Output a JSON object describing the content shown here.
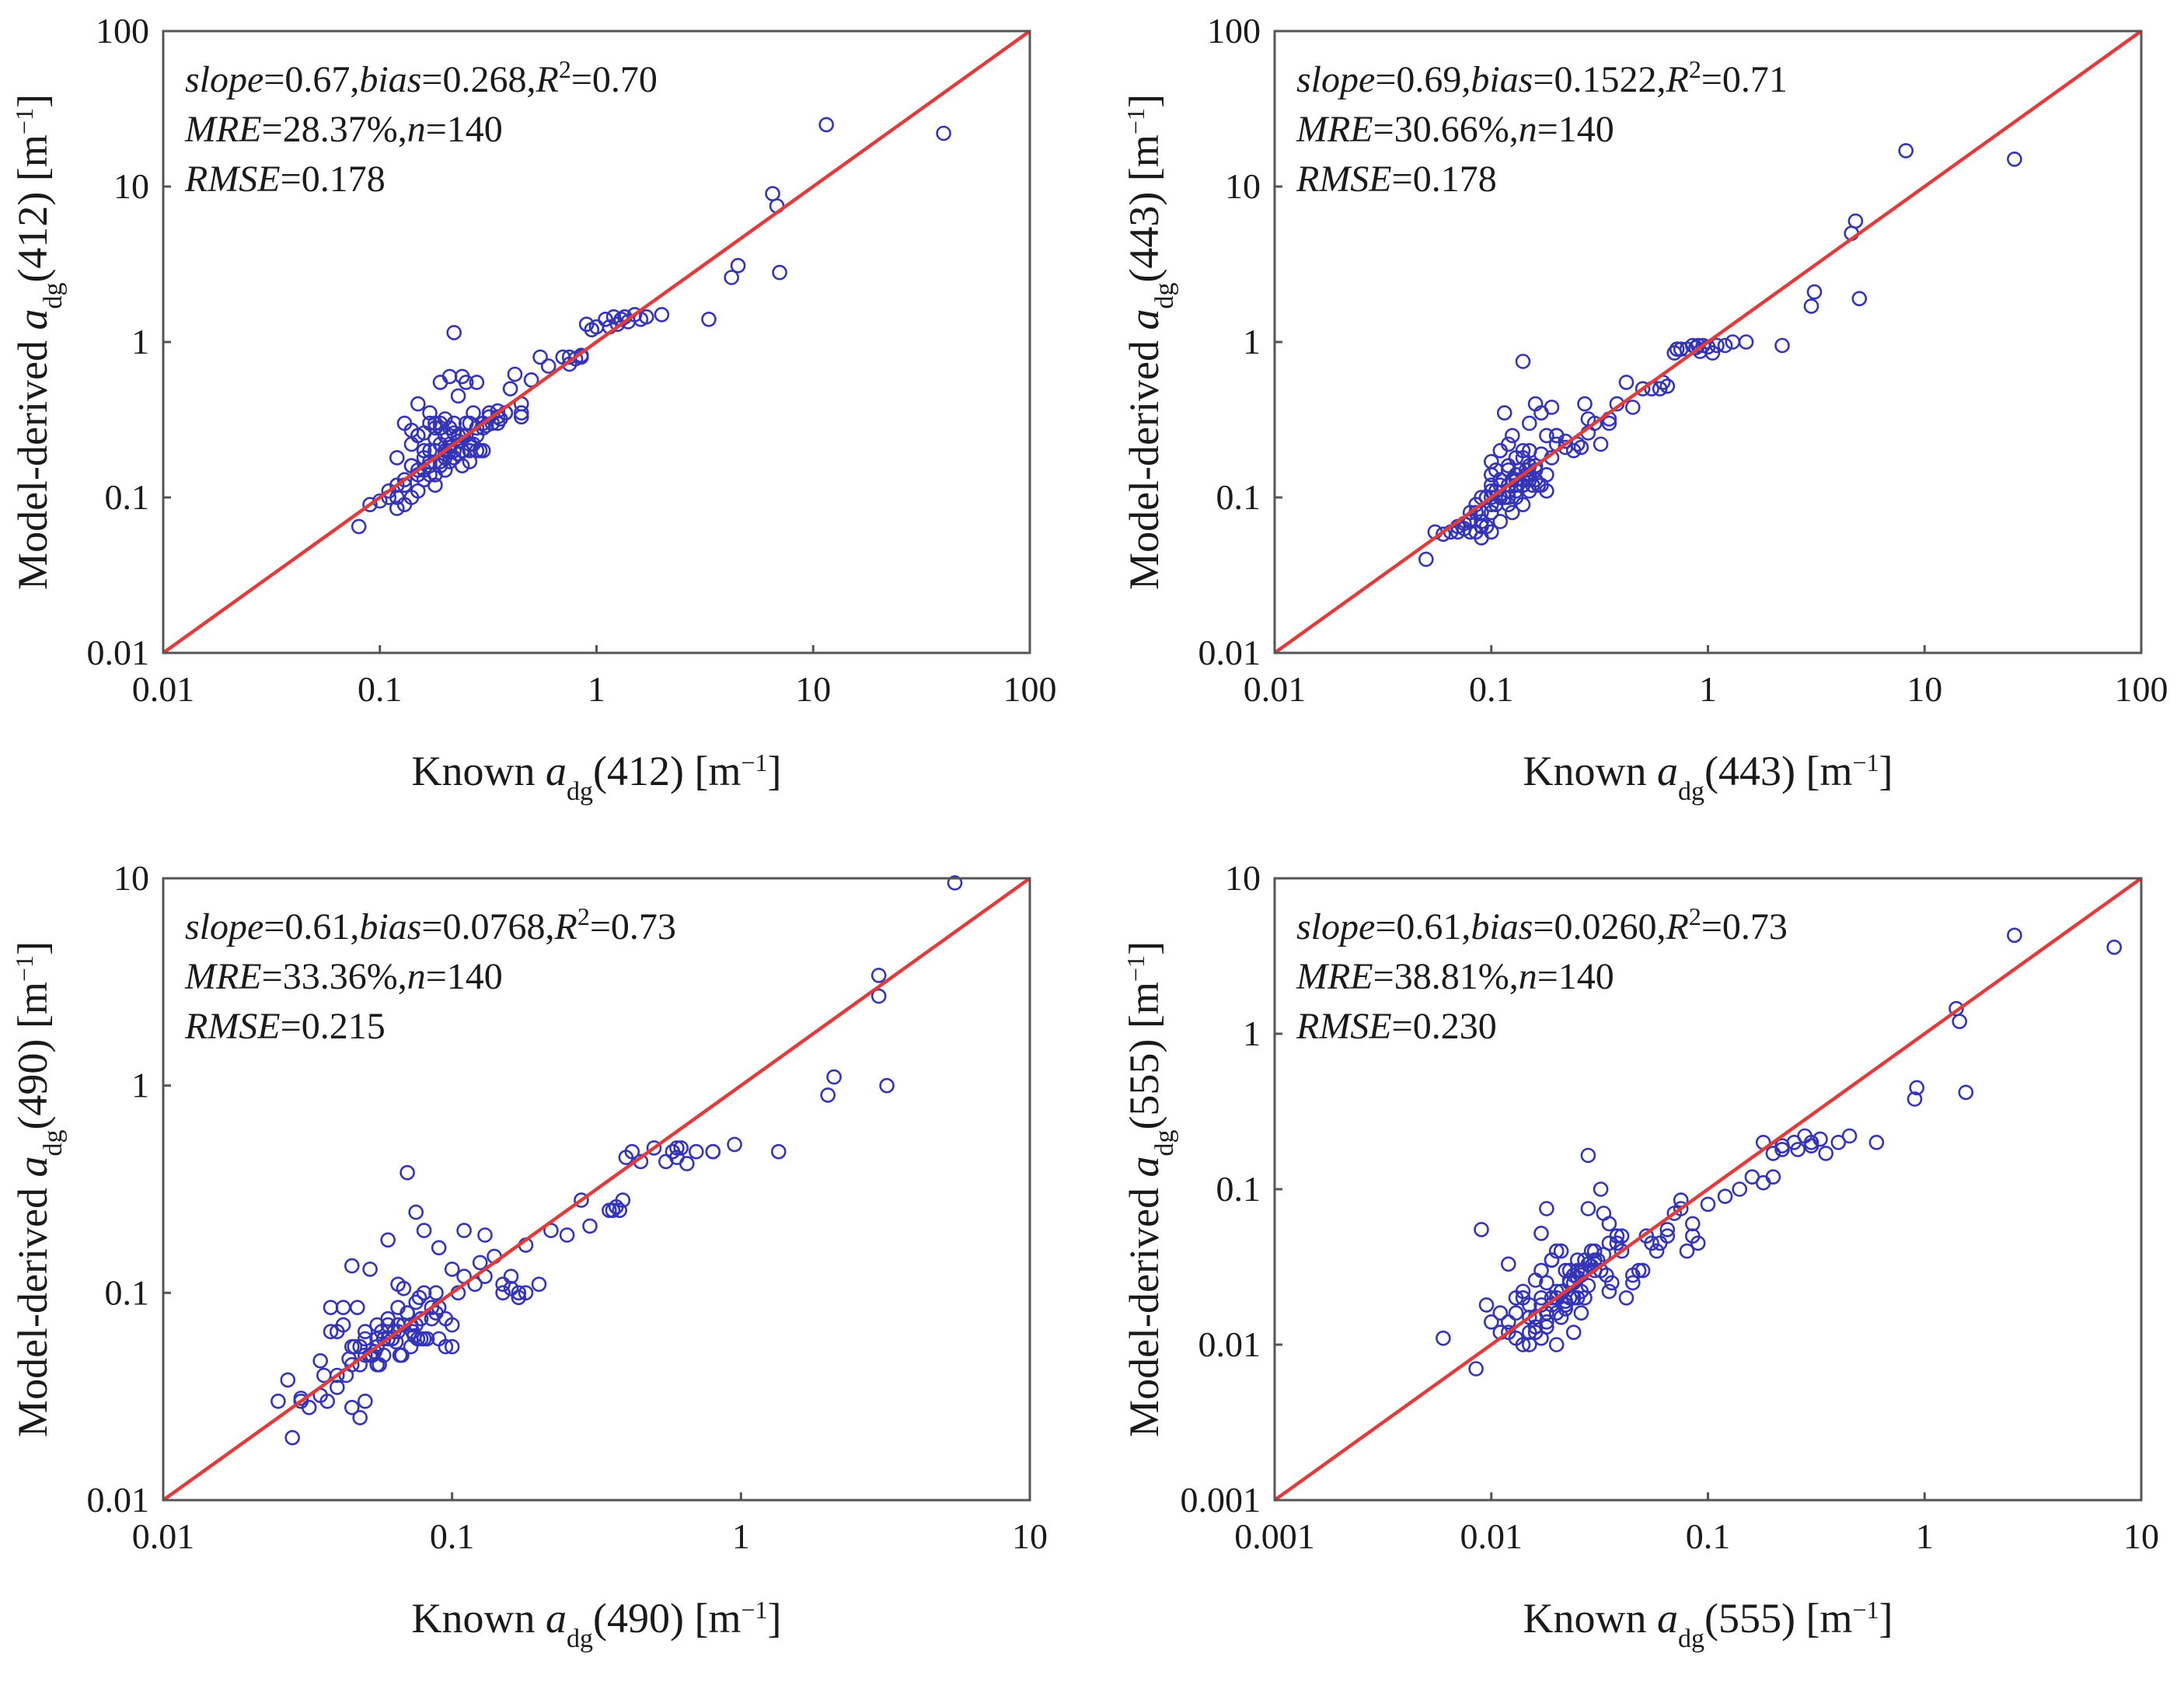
{
  "colors": {
    "points": "#3434b8",
    "identity_line": "#e23b3b",
    "frame": "#555555"
  },
  "chart_data": [
    {
      "type": "scatter",
      "panel": "412",
      "scale": "log",
      "xlim": [
        0.01,
        100
      ],
      "ylim": [
        0.01,
        100
      ],
      "xticks": [
        "0.01",
        "0.1",
        "1",
        "10",
        "100"
      ],
      "yticks": [
        "0.01",
        "0.1",
        "1",
        "10",
        "100"
      ],
      "xlabel": {
        "prefix": "Known ",
        "var": "a",
        "sub": "dg",
        "band": "(412) [m",
        "sup": "−1",
        "suffix": "]"
      },
      "ylabel": {
        "prefix": "Model-derived ",
        "var": "a",
        "sub": "dg",
        "band": "(412) [m",
        "sup": "−1",
        "suffix": "]"
      },
      "stats": {
        "slope": "0.67",
        "bias": "0.268",
        "r2": "0.70",
        "mre": "28.37%",
        "n": "140",
        "rmse": "0.178"
      },
      "x": [
        0.08,
        0.09,
        0.1,
        0.11,
        0.12,
        0.12,
        0.13,
        0.13,
        0.14,
        0.14,
        0.14,
        0.15,
        0.15,
        0.15,
        0.16,
        0.16,
        0.16,
        0.17,
        0.17,
        0.17,
        0.18,
        0.18,
        0.18,
        0.19,
        0.19,
        0.19,
        0.2,
        0.2,
        0.2,
        0.21,
        0.21,
        0.21,
        0.22,
        0.22,
        0.22,
        0.23,
        0.23,
        0.23,
        0.24,
        0.24,
        0.25,
        0.25,
        0.26,
        0.26,
        0.27,
        0.28,
        0.28,
        0.3,
        0.3,
        0.32,
        0.32,
        0.35,
        0.35,
        0.38,
        0.4,
        0.42,
        0.45,
        0.45,
        0.5,
        0.55,
        0.6,
        0.7,
        0.75,
        0.8,
        0.85,
        0.9,
        0.95,
        1.0,
        1.1,
        1.2,
        1.3,
        1.4,
        1.5,
        1.7,
        2.0,
        3.3,
        4.2,
        4.5,
        6.5,
        6.8,
        7.0,
        11.5,
        40,
        0.13,
        0.15,
        0.17,
        0.19,
        0.21,
        0.24,
        0.27,
        0.3,
        0.12,
        0.14,
        0.16,
        0.18,
        0.2,
        0.22,
        0.25,
        0.28,
        0.35,
        0.18,
        0.22,
        0.26,
        0.16,
        0.2,
        0.24,
        0.33,
        0.45,
        0.13,
        0.17,
        0.21,
        0.23,
        0.15,
        0.19,
        0.29,
        0.36,
        0.14,
        0.18,
        1.25,
        1.35,
        1.15,
        0.85,
        0.75,
        1.6,
        0.12,
        0.11,
        0.16,
        0.2,
        0.26,
        0.31,
        0.38,
        0.21,
        0.19,
        0.23,
        0.17,
        0.28,
        0.24,
        0.15
      ],
      "y": [
        0.065,
        0.09,
        0.095,
        0.1,
        0.1,
        0.12,
        0.13,
        0.09,
        0.27,
        0.16,
        0.1,
        0.25,
        0.15,
        0.11,
        0.2,
        0.13,
        0.26,
        0.35,
        0.17,
        0.14,
        0.3,
        0.2,
        0.12,
        0.55,
        0.22,
        0.16,
        0.32,
        0.18,
        0.25,
        0.6,
        0.22,
        0.17,
        1.15,
        0.3,
        0.2,
        0.45,
        0.25,
        0.19,
        0.6,
        0.2,
        0.55,
        0.3,
        0.3,
        0.17,
        0.35,
        0.55,
        0.25,
        0.3,
        0.28,
        0.33,
        0.35,
        0.33,
        0.3,
        0.35,
        0.5,
        0.62,
        0.4,
        0.33,
        0.57,
        0.8,
        0.7,
        0.8,
        0.8,
        0.78,
        0.8,
        1.3,
        1.2,
        1.25,
        1.4,
        1.45,
        1.4,
        1.35,
        1.5,
        1.45,
        1.5,
        1.4,
        2.6,
        3.1,
        9.0,
        7.5,
        2.8,
        25.0,
        22.0,
        0.3,
        0.4,
        0.3,
        0.28,
        0.28,
        0.25,
        0.22,
        0.2,
        0.18,
        0.16,
        0.15,
        0.14,
        0.2,
        0.18,
        0.25,
        0.2,
        0.36,
        0.24,
        0.26,
        0.22,
        0.18,
        0.15,
        0.16,
        0.3,
        0.35,
        0.12,
        0.16,
        0.2,
        0.23,
        0.25,
        0.3,
        0.2,
        0.32,
        0.22,
        0.28,
        1.3,
        1.45,
        1.25,
        0.82,
        0.72,
        1.4,
        0.085,
        0.11,
        0.15,
        0.19,
        0.2,
        0.29,
        0.35,
        0.21,
        0.17,
        0.23,
        0.2,
        0.28,
        0.2,
        0.14
      ]
    },
    {
      "type": "scatter",
      "panel": "443",
      "scale": "log",
      "xlim": [
        0.01,
        100
      ],
      "ylim": [
        0.01,
        100
      ],
      "xticks": [
        "0.01",
        "0.1",
        "1",
        "10",
        "100"
      ],
      "yticks": [
        "0.01",
        "0.1",
        "1",
        "10",
        "100"
      ],
      "xlabel": {
        "prefix": "Known ",
        "var": "a",
        "sub": "dg",
        "band": "(443) [m",
        "sup": "−1",
        "suffix": "]"
      },
      "ylabel": {
        "prefix": "Model-derived ",
        "var": "a",
        "sub": "dg",
        "band": "(443) [m",
        "sup": "−1",
        "suffix": "]"
      },
      "stats": {
        "slope": "0.69",
        "bias": "0.1522",
        "r2": "0.71",
        "mre": "30.66%",
        "n": "140",
        "rmse": "0.178"
      },
      "x": [
        0.05,
        0.055,
        0.06,
        0.065,
        0.07,
        0.07,
        0.075,
        0.08,
        0.08,
        0.085,
        0.085,
        0.09,
        0.09,
        0.09,
        0.095,
        0.095,
        0.1,
        0.1,
        0.1,
        0.1,
        0.105,
        0.105,
        0.11,
        0.11,
        0.11,
        0.115,
        0.115,
        0.12,
        0.12,
        0.12,
        0.125,
        0.125,
        0.13,
        0.13,
        0.13,
        0.135,
        0.14,
        0.14,
        0.14,
        0.145,
        0.15,
        0.15,
        0.15,
        0.155,
        0.16,
        0.16,
        0.17,
        0.17,
        0.18,
        0.18,
        0.19,
        0.2,
        0.2,
        0.22,
        0.24,
        0.25,
        0.27,
        0.28,
        0.3,
        0.32,
        0.35,
        0.38,
        0.42,
        0.5,
        0.55,
        0.6,
        0.62,
        0.65,
        0.75,
        0.8,
        0.85,
        0.9,
        0.95,
        1.0,
        1.1,
        1.2,
        1.3,
        1.5,
        2.2,
        3.0,
        3.1,
        4.8,
        4.6,
        5.0,
        8.2,
        26,
        0.1,
        0.12,
        0.14,
        0.16,
        0.11,
        0.13,
        0.15,
        0.09,
        0.17,
        0.19,
        0.08,
        0.1,
        0.12,
        0.14,
        0.16,
        0.18,
        0.11,
        0.13,
        0.15,
        0.085,
        0.095,
        0.105,
        0.125,
        0.145,
        0.165,
        0.2,
        0.22,
        0.26,
        0.28,
        0.35,
        0.45,
        0.7,
        0.72,
        0.88,
        0.92,
        1.05,
        0.13,
        0.1,
        0.12,
        0.14,
        0.16,
        0.11,
        0.15,
        0.09,
        0.08,
        0.075,
        0.13,
        0.12,
        0.1,
        0.14
      ],
      "y": [
        0.04,
        0.06,
        0.058,
        0.06,
        0.06,
        0.065,
        0.063,
        0.07,
        0.06,
        0.08,
        0.06,
        0.1,
        0.07,
        0.055,
        0.1,
        0.065,
        0.17,
        0.12,
        0.08,
        0.06,
        0.15,
        0.09,
        0.2,
        0.13,
        0.07,
        0.35,
        0.1,
        0.22,
        0.12,
        0.09,
        0.25,
        0.08,
        0.18,
        0.12,
        0.1,
        0.15,
        0.75,
        0.2,
        0.12,
        0.15,
        0.3,
        0.2,
        0.14,
        0.12,
        0.4,
        0.15,
        0.35,
        0.12,
        0.25,
        0.11,
        0.38,
        0.25,
        0.22,
        0.23,
        0.2,
        0.22,
        0.4,
        0.32,
        0.3,
        0.22,
        0.3,
        0.4,
        0.55,
        0.5,
        0.5,
        0.5,
        0.55,
        0.52,
        0.9,
        0.9,
        0.95,
        0.95,
        0.95,
        0.93,
        0.95,
        0.95,
        1.0,
        1.0,
        0.95,
        1.7,
        2.1,
        6.0,
        5.0,
        1.9,
        17.0,
        15.0,
        0.14,
        0.16,
        0.18,
        0.16,
        0.12,
        0.14,
        0.16,
        0.08,
        0.19,
        0.18,
        0.08,
        0.09,
        0.11,
        0.13,
        0.15,
        0.14,
        0.1,
        0.12,
        0.13,
        0.09,
        0.1,
        0.11,
        0.13,
        0.14,
        0.12,
        0.25,
        0.21,
        0.21,
        0.26,
        0.32,
        0.38,
        0.85,
        0.9,
        0.92,
        0.87,
        0.85,
        0.11,
        0.1,
        0.1,
        0.12,
        0.13,
        0.1,
        0.11,
        0.065,
        0.072,
        0.068,
        0.13,
        0.15,
        0.11,
        0.09
      ]
    },
    {
      "type": "scatter",
      "panel": "490",
      "scale": "log",
      "xlim": [
        0.01,
        10
      ],
      "ylim": [
        0.01,
        10
      ],
      "xticks": [
        "0.01",
        "0.1",
        "1",
        "10"
      ],
      "yticks": [
        "0.01",
        "0.1",
        "1",
        "10"
      ],
      "xlabel": {
        "prefix": "Known ",
        "var": "a",
        "sub": "dg",
        "band": "(490) [m",
        "sup": "−1",
        "suffix": "]"
      },
      "ylabel": {
        "prefix": "Model-derived ",
        "var": "a",
        "sub": "dg",
        "band": "(490) [m",
        "sup": "−1",
        "suffix": "]"
      },
      "stats": {
        "slope": "0.61",
        "bias": "0.0768",
        "r2": "0.73",
        "mre": "33.36%",
        "n": "140",
        "rmse": "0.215"
      },
      "x": [
        0.025,
        0.027,
        0.028,
        0.03,
        0.03,
        0.032,
        0.035,
        0.035,
        0.037,
        0.038,
        0.04,
        0.04,
        0.042,
        0.043,
        0.045,
        0.045,
        0.047,
        0.048,
        0.05,
        0.05,
        0.05,
        0.052,
        0.053,
        0.055,
        0.055,
        0.057,
        0.058,
        0.06,
        0.06,
        0.06,
        0.062,
        0.063,
        0.065,
        0.065,
        0.067,
        0.068,
        0.07,
        0.07,
        0.072,
        0.073,
        0.075,
        0.075,
        0.077,
        0.078,
        0.08,
        0.08,
        0.082,
        0.085,
        0.088,
        0.09,
        0.09,
        0.095,
        0.1,
        0.1,
        0.105,
        0.11,
        0.12,
        0.125,
        0.13,
        0.14,
        0.15,
        0.16,
        0.17,
        0.18,
        0.2,
        0.22,
        0.25,
        0.28,
        0.3,
        0.35,
        0.38,
        0.4,
        0.42,
        0.45,
        0.5,
        0.55,
        0.58,
        0.6,
        0.65,
        0.7,
        0.8,
        0.95,
        1.35,
        2.0,
        2.1,
        3.0,
        3.0,
        3.2,
        5.5,
        0.05,
        0.055,
        0.06,
        0.065,
        0.07,
        0.075,
        0.08,
        0.045,
        0.085,
        0.09,
        0.04,
        0.048,
        0.058,
        0.068,
        0.078,
        0.088,
        0.052,
        0.062,
        0.072,
        0.038,
        0.042,
        0.046,
        0.056,
        0.066,
        0.076,
        0.036,
        0.044,
        0.054,
        0.064,
        0.074,
        0.16,
        0.17,
        0.18,
        0.36,
        0.37,
        0.39,
        0.6,
        0.62,
        0.8,
        0.1,
        0.095,
        0.11,
        0.13,
        0.15,
        0.055,
        0.065,
        0.058,
        0.048,
        0.045
      ],
      "y": [
        0.03,
        0.038,
        0.02,
        0.03,
        0.031,
        0.028,
        0.047,
        0.032,
        0.03,
        0.085,
        0.035,
        0.04,
        0.085,
        0.04,
        0.135,
        0.045,
        0.085,
        0.045,
        0.05,
        0.06,
        0.03,
        0.13,
        0.05,
        0.07,
        0.055,
        0.065,
        0.06,
        0.18,
        0.07,
        0.06,
        0.06,
        0.065,
        0.11,
        0.07,
        0.05,
        0.105,
        0.38,
        0.08,
        0.07,
        0.065,
        0.245,
        0.09,
        0.095,
        0.06,
        0.2,
        0.1,
        0.06,
        0.085,
        0.1,
        0.165,
        0.06,
        0.075,
        0.055,
        0.13,
        0.1,
        0.12,
        0.11,
        0.14,
        0.19,
        0.15,
        0.1,
        0.12,
        0.1,
        0.17,
        0.11,
        0.2,
        0.19,
        0.28,
        0.21,
        0.25,
        0.25,
        0.45,
        0.48,
        0.43,
        0.5,
        0.43,
        0.48,
        0.5,
        0.42,
        0.48,
        0.48,
        0.52,
        0.48,
        0.9,
        1.1,
        3.4,
        2.7,
        1.0,
        9.5,
        0.065,
        0.06,
        0.075,
        0.065,
        0.08,
        0.07,
        0.06,
        0.055,
        0.075,
        0.085,
        0.065,
        0.055,
        0.06,
        0.07,
        0.075,
        0.08,
        0.05,
        0.06,
        0.055,
        0.065,
        0.07,
        0.055,
        0.045,
        0.05,
        0.06,
        0.04,
        0.048,
        0.052,
        0.058,
        0.062,
        0.105,
        0.095,
        0.1,
        0.25,
        0.26,
        0.28,
        0.45,
        0.5,
        0.48,
        0.07,
        0.055,
        0.2,
        0.12,
        0.11,
        0.045,
        0.085,
        0.05,
        0.025,
        0.028
      ],
      "note": ""
    },
    {
      "type": "scatter",
      "panel": "555",
      "scale": "log",
      "xlim": [
        0.001,
        10
      ],
      "ylim": [
        0.001,
        10
      ],
      "xticks": [
        "0.001",
        "0.01",
        "0.1",
        "1",
        "10"
      ],
      "yticks": [
        "0.001",
        "0.01",
        "0.1",
        "1",
        "10"
      ],
      "xlabel": {
        "prefix": "Known ",
        "var": "a",
        "sub": "dg",
        "band": "(555) [m",
        "sup": "−1",
        "suffix": "]"
      },
      "ylabel": {
        "prefix": "Model-derived ",
        "var": "a",
        "sub": "dg",
        "band": "(555) [m",
        "sup": "−1",
        "suffix": "]"
      },
      "stats": {
        "slope": "0.61",
        "bias": "0.0260",
        "r2": "0.73",
        "mre": "38.81%",
        "n": "140",
        "rmse": "0.230"
      },
      "x": [
        0.006,
        0.0085,
        0.009,
        0.0095,
        0.01,
        0.011,
        0.012,
        0.012,
        0.013,
        0.013,
        0.014,
        0.014,
        0.015,
        0.015,
        0.015,
        0.016,
        0.016,
        0.017,
        0.017,
        0.017,
        0.018,
        0.018,
        0.018,
        0.019,
        0.019,
        0.02,
        0.02,
        0.02,
        0.021,
        0.021,
        0.022,
        0.022,
        0.023,
        0.023,
        0.024,
        0.024,
        0.025,
        0.025,
        0.026,
        0.026,
        0.027,
        0.028,
        0.028,
        0.03,
        0.03,
        0.032,
        0.033,
        0.035,
        0.035,
        0.038,
        0.04,
        0.042,
        0.045,
        0.05,
        0.055,
        0.06,
        0.065,
        0.07,
        0.075,
        0.08,
        0.085,
        0.09,
        0.1,
        0.12,
        0.14,
        0.16,
        0.18,
        0.2,
        0.22,
        0.25,
        0.28,
        0.3,
        0.35,
        0.4,
        0.45,
        0.6,
        0.9,
        0.92,
        1.4,
        1.45,
        1.55,
        2.6,
        7.5,
        0.015,
        0.017,
        0.019,
        0.021,
        0.023,
        0.025,
        0.027,
        0.029,
        0.031,
        0.033,
        0.016,
        0.018,
        0.02,
        0.022,
        0.024,
        0.026,
        0.028,
        0.014,
        0.03,
        0.034,
        0.036,
        0.038,
        0.04,
        0.045,
        0.048,
        0.052,
        0.058,
        0.065,
        0.075,
        0.085,
        0.18,
        0.2,
        0.22,
        0.26,
        0.3,
        0.33,
        0.016,
        0.018,
        0.02,
        0.022,
        0.024,
        0.026,
        0.028,
        0.013,
        0.012,
        0.011,
        0.017,
        0.019,
        0.021,
        0.023,
        0.025,
        0.027,
        0.029,
        0.032,
        0.035
      ],
      "y": [
        0.011,
        0.007,
        0.055,
        0.018,
        0.014,
        0.012,
        0.033,
        0.012,
        0.016,
        0.011,
        0.022,
        0.01,
        0.012,
        0.018,
        0.01,
        0.026,
        0.015,
        0.052,
        0.02,
        0.011,
        0.075,
        0.025,
        0.013,
        0.035,
        0.018,
        0.04,
        0.02,
        0.01,
        0.022,
        0.015,
        0.03,
        0.017,
        0.03,
        0.02,
        0.025,
        0.012,
        0.035,
        0.02,
        0.028,
        0.016,
        0.02,
        0.165,
        0.075,
        0.03,
        0.035,
        0.1,
        0.07,
        0.022,
        0.06,
        0.05,
        0.04,
        0.02,
        0.028,
        0.03,
        0.045,
        0.045,
        0.055,
        0.07,
        0.085,
        0.04,
        0.05,
        0.045,
        0.08,
        0.09,
        0.1,
        0.12,
        0.2,
        0.12,
        0.18,
        0.2,
        0.22,
        0.19,
        0.17,
        0.2,
        0.22,
        0.2,
        0.38,
        0.45,
        1.45,
        1.2,
        0.42,
        4.3,
        3.6,
        0.015,
        0.018,
        0.02,
        0.022,
        0.025,
        0.027,
        0.03,
        0.032,
        0.035,
        0.038,
        0.012,
        0.014,
        0.016,
        0.018,
        0.02,
        0.022,
        0.024,
        0.02,
        0.04,
        0.028,
        0.025,
        0.045,
        0.05,
        0.025,
        0.03,
        0.05,
        0.04,
        0.05,
        0.075,
        0.06,
        0.11,
        0.17,
        0.19,
        0.18,
        0.2,
        0.21,
        0.013,
        0.016,
        0.022,
        0.019,
        0.028,
        0.03,
        0.033,
        0.02,
        0.014,
        0.016,
        0.03,
        0.035,
        0.04,
        0.026,
        0.03,
        0.035,
        0.04,
        0.03,
        0.045
      ]
    }
  ]
}
